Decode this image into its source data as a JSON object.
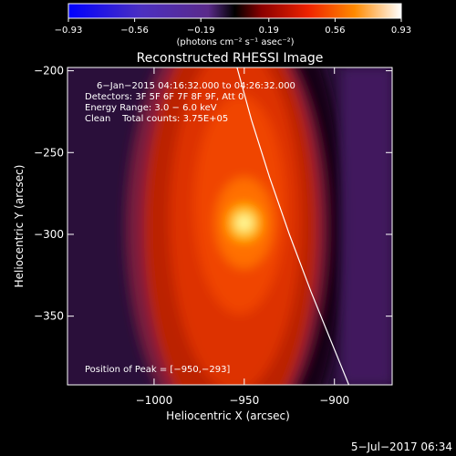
{
  "chart_data": {
    "type": "heatmap",
    "title": "Reconstructed RHESSI Image",
    "xlabel": "Heliocentric X (arcsec)",
    "ylabel": "Heliocentric Y (arcsec)",
    "xlim": [
      -1048,
      -868
    ],
    "ylim": [
      -392,
      -198
    ],
    "x_ticks": [
      -1000,
      -950,
      -900
    ],
    "x_tick_labels": [
      "−1000",
      "−950",
      "−900"
    ],
    "y_ticks": [
      -200,
      -250,
      -300,
      -350
    ],
    "y_tick_labels": [
      "−200",
      "−250",
      "−300",
      "−350"
    ],
    "colorbar": {
      "range": [
        -0.93,
        0.93
      ],
      "tick_values": [
        -0.93,
        -0.56,
        -0.19,
        0.19,
        0.56,
        0.93
      ],
      "tick_labels": [
        "−0.93",
        "−0.56",
        "−0.19",
        "0.19",
        "0.56",
        "0.93"
      ],
      "unit_label": "(photons cm⁻² s⁻¹ asec⁻²)",
      "colors": [
        "#0000ff",
        "#5a2a9a",
        "#6a2a88",
        "#000000",
        "#b00000",
        "#ff3300",
        "#ff9900",
        "#ffffff"
      ]
    },
    "annotations": {
      "time_range": "6−Jan−2015 04:16:32.000 to 04:26:32.000",
      "detectors": "Detectors: 3F 5F 6F 7F 8F 9F, Att 0",
      "energy": "Energy Range: 3.0 − 6.0 keV",
      "clean": "Clean    Total counts: 3.75E+05",
      "peak": "Position of Peak = [−950,−293]"
    },
    "peak_position": [
      -950,
      -293
    ],
    "limb_points": [
      [
        -954,
        -198
      ],
      [
        -946,
        -230
      ],
      [
        -936,
        -265
      ],
      [
        -925,
        -300
      ],
      [
        -913,
        -335
      ],
      [
        -902,
        -365
      ],
      [
        -892,
        -392
      ]
    ],
    "footer": "5−Jul−2017 06:34"
  }
}
